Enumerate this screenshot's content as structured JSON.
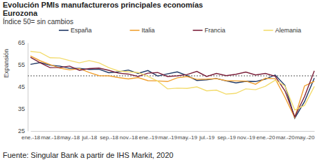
{
  "chart_data": {
    "type": "line",
    "title": "Evolución PMIs manufactureros principales economías",
    "subtitle": "Eurozona",
    "note": "Índice 50= sin cambios",
    "y_label": "Expansión",
    "source": "Fuente: Singular Bank a partir de IHS Markit, 2020",
    "categories": [
      "ene.-18",
      null,
      "mar.-18",
      null,
      "may.-18",
      null,
      "jul.-18",
      null,
      "sep.-18",
      null,
      "nov.-18",
      null,
      "ene.-19",
      null,
      "mar.-19",
      null,
      "may.-19",
      null,
      "jul.-19",
      null,
      "sep.-19",
      null,
      "nov.-19",
      null,
      "ene.-20",
      null,
      "mar.-20",
      null,
      "may.-20",
      null
    ],
    "series": [
      {
        "name": "España",
        "color": "#1f3864",
        "values": [
          55.2,
          56.0,
          54.8,
          54.4,
          53.4,
          53.4,
          52.9,
          53.0,
          51.4,
          51.8,
          52.6,
          51.1,
          52.4,
          49.9,
          50.9,
          51.8,
          50.1,
          47.9,
          48.2,
          48.8,
          47.7,
          46.8,
          47.5,
          47.4,
          48.5,
          50.4,
          45.7,
          30.8,
          38.3,
          49.0
        ]
      },
      {
        "name": "Italia",
        "color": "#f0a030",
        "values": [
          59.0,
          56.8,
          55.1,
          53.5,
          52.7,
          53.3,
          51.5,
          50.1,
          50.0,
          49.2,
          48.6,
          49.2,
          47.8,
          47.7,
          47.4,
          49.1,
          49.7,
          48.4,
          48.5,
          48.7,
          47.8,
          47.7,
          47.6,
          46.2,
          48.9,
          48.7,
          40.3,
          31.1,
          45.4,
          47.5
        ]
      },
      {
        "name": "Francia",
        "color": "#7b1f3a",
        "values": [
          58.4,
          55.9,
          53.7,
          53.8,
          54.4,
          52.5,
          53.3,
          53.5,
          52.5,
          51.2,
          50.8,
          49.7,
          51.2,
          51.5,
          49.7,
          50.0,
          50.6,
          52.0,
          49.7,
          51.1,
          50.1,
          50.7,
          51.7,
          50.4,
          51.1,
          49.8,
          43.2,
          31.5,
          40.6,
          52.3
        ]
      },
      {
        "name": "Alemania",
        "color": "#f3dc6e",
        "values": [
          61.1,
          60.6,
          58.2,
          58.1,
          56.9,
          55.9,
          56.9,
          55.9,
          53.7,
          52.2,
          51.8,
          51.5,
          49.7,
          47.6,
          44.1,
          44.4,
          44.3,
          45.0,
          43.2,
          43.5,
          41.7,
          42.1,
          44.1,
          43.7,
          45.3,
          48.0,
          45.4,
          34.5,
          36.6,
          45.2
        ]
      }
    ],
    "hline": 50,
    "ylim": [
      25,
      65
    ],
    "yticks": [
      25,
      35,
      45,
      55,
      65
    ],
    "grid": false,
    "legend": "top"
  }
}
